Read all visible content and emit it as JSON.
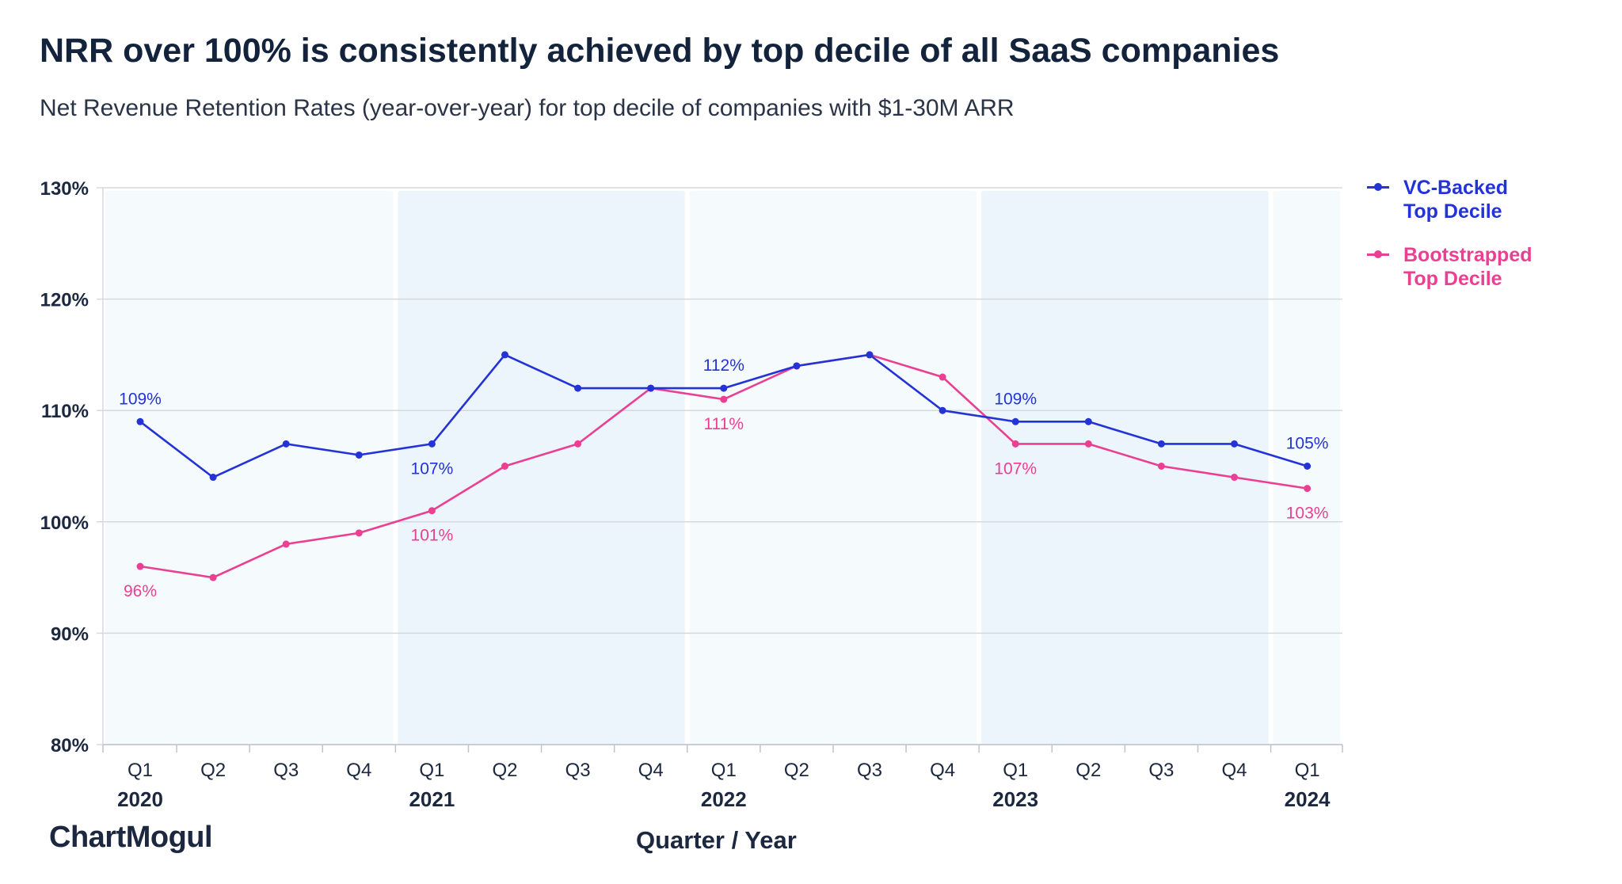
{
  "header": {
    "title": "NRR over 100% is consistently achieved by top decile of all SaaS companies",
    "subtitle": "Net Revenue Retention Rates (year-over-year) for top decile of companies with $1-30M ARR"
  },
  "branding": {
    "logo_text": "ChartMogul"
  },
  "colors": {
    "vc": "#2333d6",
    "bootstrapped": "#ea3f92",
    "band_light": "#f5fafd",
    "band_dark": "#ebf5fb",
    "grid": "#d6d9de",
    "text": "#1c2740"
  },
  "chart_data": {
    "type": "line",
    "title": "NRR over 100% is consistently achieved by top decile of all SaaS companies",
    "subtitle": "Net Revenue Retention Rates (year-over-year) for top decile of companies with $1-30M ARR",
    "xlabel": "Quarter / Year",
    "ylabel": "",
    "categories": [
      "Q1 2020",
      "Q2 2020",
      "Q3 2020",
      "Q4 2020",
      "Q1 2021",
      "Q2 2021",
      "Q3 2021",
      "Q4 2021",
      "Q1 2022",
      "Q2 2022",
      "Q3 2022",
      "Q4 2022",
      "Q1 2023",
      "Q2 2023",
      "Q3 2023",
      "Q4 2023",
      "Q1 2024"
    ],
    "quarter_ticks": [
      "Q1",
      "Q2",
      "Q3",
      "Q4",
      "Q1",
      "Q2",
      "Q3",
      "Q4",
      "Q1",
      "Q2",
      "Q3",
      "Q4",
      "Q1",
      "Q2",
      "Q3",
      "Q4",
      "Q1"
    ],
    "years": [
      {
        "label": "2020",
        "index": 0
      },
      {
        "label": "2021",
        "index": 4
      },
      {
        "label": "2022",
        "index": 8
      },
      {
        "label": "2023",
        "index": 12
      },
      {
        "label": "2024",
        "index": 16
      }
    ],
    "ylim": [
      80,
      130
    ],
    "yticks": [
      80,
      90,
      100,
      110,
      120,
      130
    ],
    "ytick_labels": [
      "80%",
      "90%",
      "100%",
      "110%",
      "120%",
      "130%"
    ],
    "grid": true,
    "legend_position": "right-top",
    "series": [
      {
        "name": "VC-Backed Top Decile",
        "name_lines": [
          "VC-Backed",
          "Top Decile"
        ],
        "color": "#2333d6",
        "values": [
          109,
          104,
          107,
          106,
          107,
          115,
          112,
          112,
          112,
          114,
          115,
          110,
          109,
          109,
          107,
          107,
          105
        ],
        "annotations": [
          {
            "index": 0,
            "text": "109%",
            "pos": "above"
          },
          {
            "index": 4,
            "text": "107%",
            "pos": "below"
          },
          {
            "index": 8,
            "text": "112%",
            "pos": "above"
          },
          {
            "index": 12,
            "text": "109%",
            "pos": "above"
          },
          {
            "index": 16,
            "text": "105%",
            "pos": "above"
          }
        ]
      },
      {
        "name": "Bootstrapped Top Decile",
        "name_lines": [
          "Bootstrapped",
          "Top Decile"
        ],
        "color": "#ea3f92",
        "values": [
          96,
          95,
          98,
          99,
          101,
          105,
          107,
          112,
          111,
          114,
          115,
          113,
          107,
          107,
          105,
          104,
          103
        ],
        "annotations": [
          {
            "index": 0,
            "text": "96%",
            "pos": "below"
          },
          {
            "index": 4,
            "text": "101%",
            "pos": "below"
          },
          {
            "index": 8,
            "text": "111%",
            "pos": "below"
          },
          {
            "index": 12,
            "text": "107%",
            "pos": "below"
          },
          {
            "index": 16,
            "text": "103%",
            "pos": "below"
          }
        ]
      }
    ]
  }
}
